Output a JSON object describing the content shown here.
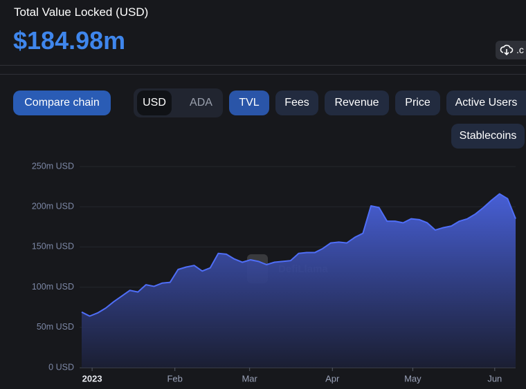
{
  "header": {
    "title": "Total Value Locked (USD)",
    "value": "$184.98m",
    "download_label": ".c"
  },
  "buttons": {
    "compare": "Compare chain",
    "toggle": [
      "USD",
      "ADA"
    ],
    "metrics": [
      "TVL",
      "Fees",
      "Revenue",
      "Price",
      "Active Users",
      "Stablecoins"
    ]
  },
  "chart_data": {
    "type": "area",
    "watermark": "DefiLlama",
    "color": "#4f6ef7",
    "grid": true,
    "values": [
      69,
      64,
      68,
      74,
      82,
      89,
      96,
      94,
      103,
      101,
      105,
      106,
      122,
      125,
      127,
      120,
      124,
      142,
      141,
      135,
      131,
      134,
      132,
      128,
      131,
      132,
      133,
      142,
      143,
      143,
      148,
      155,
      156,
      155,
      162,
      167,
      201,
      199,
      182,
      182,
      180,
      185,
      184,
      180,
      171,
      174,
      176,
      182,
      185,
      191,
      199,
      208,
      216,
      210,
      185
    ],
    "xlim": [
      0,
      54
    ],
    "xticks": [
      {
        "value": 1.3,
        "label": "2023"
      },
      {
        "value": 11.6,
        "label": "Feb"
      },
      {
        "value": 20.9,
        "label": "Mar"
      },
      {
        "value": 31.2,
        "label": "Apr"
      },
      {
        "value": 41.2,
        "label": "May"
      },
      {
        "value": 51.4,
        "label": "Jun"
      }
    ],
    "ylim": [
      0,
      250
    ],
    "yticks": [
      {
        "value": 0,
        "label": "0 USD"
      },
      {
        "value": 50,
        "label": "50m USD"
      },
      {
        "value": 100,
        "label": "100m USD"
      },
      {
        "value": 150,
        "label": "150m USD"
      },
      {
        "value": 200,
        "label": "200m USD"
      },
      {
        "value": 250,
        "label": "250m USD"
      }
    ]
  }
}
